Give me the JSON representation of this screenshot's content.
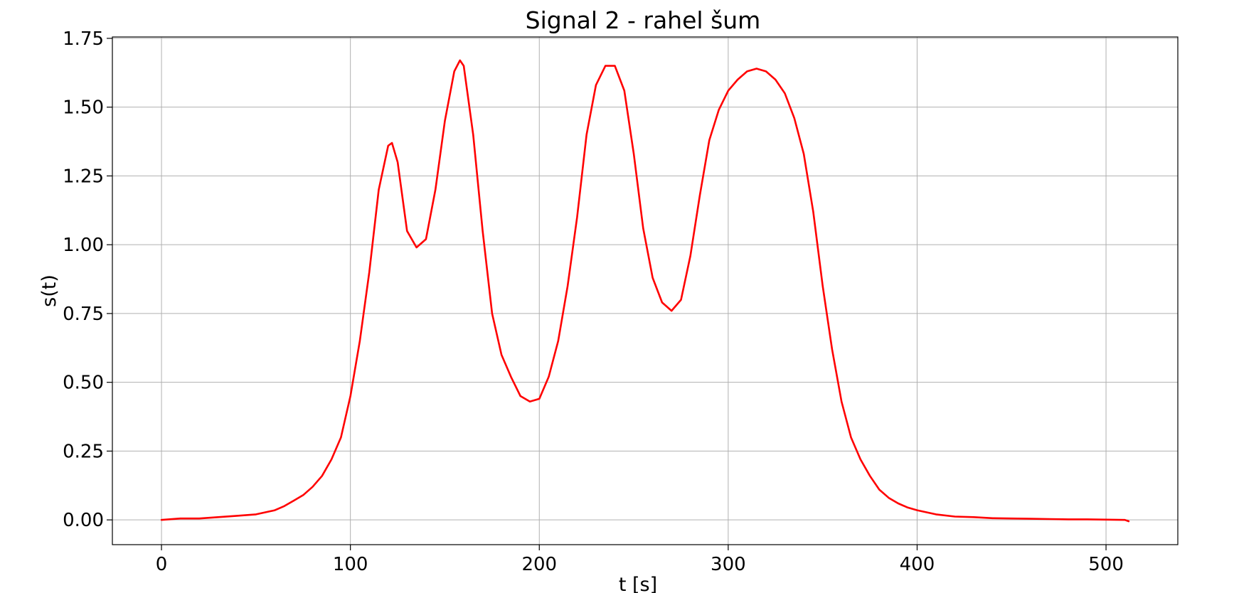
{
  "chart_data": {
    "type": "line",
    "title": "Signal 2 - rahel šum",
    "xlabel": "t [s]",
    "ylabel": "s(t)",
    "xlim": [
      -26,
      538
    ],
    "ylim": [
      -0.09,
      1.755
    ],
    "xticks": [
      0,
      100,
      200,
      300,
      400,
      500
    ],
    "xtick_labels": [
      "0",
      "100",
      "200",
      "300",
      "400",
      "500"
    ],
    "yticks": [
      0.0,
      0.25,
      0.5,
      0.75,
      1.0,
      1.25,
      1.5,
      1.75
    ],
    "ytick_labels": [
      "0.00",
      "0.25",
      "0.50",
      "0.75",
      "1.00",
      "1.25",
      "1.50",
      "1.75"
    ],
    "grid": true,
    "series": [
      {
        "color": "#ff0000",
        "x": [
          0,
          10,
          20,
          30,
          40,
          50,
          60,
          65,
          70,
          75,
          80,
          85,
          90,
          95,
          100,
          105,
          110,
          115,
          120,
          122,
          125,
          130,
          135,
          140,
          145,
          150,
          155,
          158,
          160,
          165,
          170,
          175,
          180,
          185,
          190,
          195,
          200,
          205,
          210,
          215,
          220,
          225,
          230,
          235,
          240,
          245,
          250,
          255,
          260,
          265,
          270,
          275,
          280,
          285,
          290,
          295,
          300,
          305,
          310,
          315,
          320,
          325,
          330,
          335,
          340,
          345,
          350,
          355,
          360,
          365,
          370,
          375,
          380,
          385,
          390,
          395,
          400,
          410,
          420,
          430,
          440,
          450,
          460,
          470,
          480,
          490,
          500,
          510,
          512
        ],
        "y": [
          0.0,
          0.005,
          0.005,
          0.01,
          0.015,
          0.02,
          0.035,
          0.05,
          0.07,
          0.09,
          0.12,
          0.16,
          0.22,
          0.3,
          0.45,
          0.65,
          0.9,
          1.2,
          1.36,
          1.37,
          1.3,
          1.05,
          0.99,
          1.02,
          1.2,
          1.45,
          1.63,
          1.67,
          1.65,
          1.4,
          1.05,
          0.75,
          0.6,
          0.52,
          0.45,
          0.43,
          0.44,
          0.52,
          0.65,
          0.85,
          1.1,
          1.4,
          1.58,
          1.65,
          1.65,
          1.56,
          1.33,
          1.06,
          0.88,
          0.79,
          0.76,
          0.8,
          0.96,
          1.18,
          1.38,
          1.49,
          1.56,
          1.6,
          1.63,
          1.64,
          1.63,
          1.6,
          1.55,
          1.46,
          1.33,
          1.12,
          0.85,
          0.62,
          0.43,
          0.3,
          0.22,
          0.16,
          0.11,
          0.08,
          0.06,
          0.045,
          0.035,
          0.02,
          0.012,
          0.01,
          0.006,
          0.005,
          0.004,
          0.003,
          0.002,
          0.002,
          0.001,
          0.0,
          -0.005
        ]
      }
    ]
  }
}
